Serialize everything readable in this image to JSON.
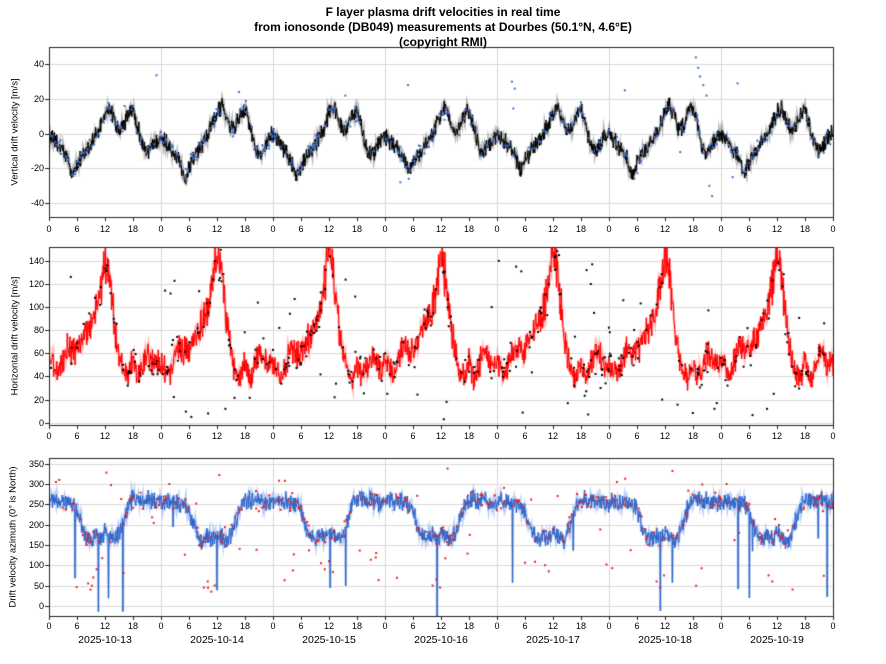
{
  "title": {
    "line1": "F layer plasma drift velocities in real time",
    "line2": "from ionosonde (DB049) measurements at Dourbes (50.1°N, 4.6°E)",
    "line3": "(copyright RMI)"
  },
  "x_axis": {
    "hours_total": 168,
    "hour_tick_step": 6,
    "hour_tick_labels": [
      "0",
      "6",
      "12",
      "18",
      "0",
      "6",
      "12",
      "18",
      "0",
      "6",
      "12",
      "18",
      "0",
      "6",
      "12",
      "18",
      "0",
      "6",
      "12",
      "18",
      "0",
      "6",
      "12",
      "18",
      "0",
      "6",
      "12",
      "18",
      "0"
    ],
    "day_labels": [
      "2025-10-13",
      "2025-10-14",
      "2025-10-15",
      "2025-10-16",
      "2025-10-17",
      "2025-10-18",
      "2025-10-19"
    ]
  },
  "colors": {
    "frame": "#222222",
    "grid": "#d9d9d9",
    "tick": "#222222"
  },
  "chart_data": {
    "type": "line",
    "x_unit": "hours since 2025-10-13 00:00",
    "grid": true,
    "panels": [
      {
        "name": "vertical_drift",
        "ylabel": "Vertical drift velocity [m/s]",
        "yticks": [
          -40,
          -20,
          0,
          20,
          40
        ],
        "ylim": [
          -48,
          50
        ],
        "line_color": "#000000",
        "band_color": "rgba(0,0,0,0.28)",
        "dot_color": "#3a6fd8",
        "noise_amplitude": 6,
        "noise_value_factor": 0,
        "spike_prob": 0,
        "spike_depth": 0,
        "scatter_per_day": 55,
        "scatter_spread": 7,
        "scatter_uniform_prob": 0.02,
        "scatter_uniform_range": [
          -35,
          40
        ],
        "hourly": [
          0,
          -4,
          -7,
          -10,
          -15,
          -24,
          -18,
          -13,
          -10,
          -6,
          -2,
          4,
          11,
          15,
          8,
          2,
          5,
          11,
          14,
          4,
          -6,
          -11,
          -8,
          -3,
          -1,
          -5,
          -8,
          -11,
          -16,
          -26,
          -19,
          -13,
          -9,
          -5,
          -1,
          5,
          12,
          16,
          9,
          3,
          5,
          10,
          15,
          5,
          -7,
          -12,
          -8,
          -4,
          0,
          -4,
          -8,
          -12,
          -17,
          -27,
          -20,
          -14,
          -10,
          -6,
          -2,
          4,
          12,
          17,
          8,
          2,
          4,
          9,
          13,
          3,
          -8,
          -13,
          -9,
          -4,
          -1,
          -4,
          -7,
          -10,
          -14,
          -23,
          -17,
          -12,
          -9,
          -5,
          -1,
          5,
          11,
          15,
          7,
          1,
          3,
          10,
          14,
          4,
          -7,
          -11,
          -7,
          -3,
          0,
          -3,
          -6,
          -9,
          -13,
          -22,
          -16,
          -11,
          -8,
          -4,
          0,
          6,
          12,
          16,
          8,
          2,
          4,
          11,
          15,
          5,
          -6,
          -10,
          -7,
          -2,
          -1,
          -4,
          -7,
          -11,
          -15,
          -25,
          -18,
          -12,
          -9,
          -5,
          -1,
          5,
          13,
          17,
          9,
          3,
          5,
          12,
          16,
          5,
          -7,
          -12,
          -8,
          -3,
          0,
          -3,
          -7,
          -10,
          -14,
          -23,
          -17,
          -12,
          -8,
          -4,
          0,
          5,
          12,
          16,
          8,
          2,
          4,
          10,
          14,
          4,
          -6,
          -10,
          -6,
          -2,
          0
        ],
        "outliers": [
          [
            16.2,
            16
          ],
          [
            40.7,
            24
          ],
          [
            63.5,
            22
          ],
          [
            75.3,
            -28
          ],
          [
            99.2,
            30
          ],
          [
            99.8,
            26
          ],
          [
            123.4,
            25
          ],
          [
            138.6,
            44
          ],
          [
            139.1,
            38
          ],
          [
            139.5,
            33
          ],
          [
            140.2,
            28
          ],
          [
            140.9,
            22
          ],
          [
            141.5,
            -30
          ],
          [
            142.1,
            -36
          ],
          [
            146.5,
            -25
          ]
        ]
      },
      {
        "name": "horizontal_drift",
        "ylabel": "Horizontal drift velocity [m/s]",
        "yticks": [
          0,
          20,
          40,
          60,
          80,
          100,
          120,
          140
        ],
        "ylim": [
          -2,
          152
        ],
        "line_color": "#ff0000",
        "band_color": "rgba(255,60,60,0.35)",
        "dot_color": "#000000",
        "noise_amplitude": 18,
        "noise_value_factor": 0.006,
        "spike_prob": 0,
        "spike_depth": 0,
        "scatter_per_day": 50,
        "scatter_spread": 24,
        "scatter_uniform_prob": 0.15,
        "scatter_uniform_range": [
          4,
          145
        ],
        "hourly": [
          55,
          48,
          45,
          55,
          65,
          60,
          62,
          70,
          78,
          85,
          95,
          115,
          142,
          125,
          85,
          60,
          45,
          40,
          55,
          38,
          45,
          60,
          55,
          50,
          52,
          46,
          44,
          58,
          68,
          62,
          60,
          72,
          80,
          88,
          100,
          120,
          148,
          130,
          90,
          62,
          42,
          38,
          52,
          35,
          48,
          62,
          58,
          52,
          50,
          45,
          42,
          54,
          64,
          58,
          61,
          68,
          76,
          84,
          98,
          118,
          150,
          128,
          88,
          58,
          44,
          36,
          50,
          40,
          46,
          58,
          54,
          48,
          54,
          47,
          43,
          56,
          66,
          60,
          63,
          71,
          79,
          86,
          96,
          116,
          145,
          126,
          86,
          61,
          43,
          39,
          54,
          37,
          47,
          61,
          56,
          51,
          53,
          46,
          44,
          57,
          67,
          61,
          62,
          70,
          78,
          87,
          99,
          119,
          149,
          129,
          89,
          60,
          42,
          37,
          51,
          36,
          49,
          63,
          57,
          50,
          51,
          45,
          43,
          55,
          65,
          59,
          61,
          69,
          77,
          85,
          97,
          117,
          146,
          127,
          87,
          59,
          44,
          38,
          53,
          39,
          45,
          59,
          55,
          49,
          52,
          47,
          44,
          56,
          66,
          60,
          62,
          70,
          78,
          86,
          98,
          118,
          150,
          128,
          88,
          60,
          43,
          38,
          52,
          37,
          46,
          60,
          56,
          50,
          52
        ],
        "outliers": [
          [
            13.2,
            112
          ],
          [
            30.5,
            5
          ],
          [
            34.1,
            8
          ],
          [
            37.8,
            12
          ],
          [
            61.2,
            22
          ],
          [
            84.6,
            3
          ],
          [
            85.2,
            18
          ],
          [
            96.4,
            140
          ],
          [
            100.1,
            135
          ],
          [
            109.3,
            145
          ],
          [
            115.2,
            132
          ],
          [
            116.1,
            120
          ],
          [
            116.8,
            95
          ],
          [
            117.4,
            60
          ],
          [
            118.2,
            30
          ],
          [
            131.4,
            20
          ],
          [
            142.6,
            12
          ],
          [
            155.3,
            25
          ]
        ]
      },
      {
        "name": "drift_azimuth",
        "ylabel": "Drift velocity azimuth (0° is North)",
        "yticks": [
          0,
          50,
          100,
          150,
          200,
          250,
          300,
          350
        ],
        "ylim": [
          -25,
          364
        ],
        "line_color": "#2e64c8",
        "band_color": "rgba(80,130,225,0.40)",
        "dot_color": "#e82020",
        "noise_amplitude": 26,
        "noise_value_factor": 0,
        "spike_prob": 0.009,
        "spike_depth": 150,
        "scatter_per_day": 45,
        "scatter_spread": 35,
        "scatter_uniform_prob": 0.18,
        "scatter_uniform_range": [
          35,
          330
        ],
        "hourly": [
          255,
          262,
          250,
          258,
          252,
          248,
          238,
          200,
          172,
          160,
          175,
          165,
          182,
          170,
          160,
          176,
          212,
          246,
          262,
          266,
          256,
          262,
          258,
          252,
          250,
          258,
          252,
          256,
          250,
          246,
          235,
          195,
          168,
          158,
          172,
          162,
          178,
          168,
          158,
          172,
          208,
          242,
          258,
          263,
          254,
          260,
          256,
          250,
          252,
          260,
          254,
          258,
          252,
          248,
          240,
          198,
          170,
          162,
          176,
          166,
          180,
          172,
          162,
          176,
          212,
          246,
          262,
          266,
          256,
          262,
          258,
          252,
          254,
          261,
          252,
          257,
          251,
          247,
          237,
          196,
          169,
          159,
          174,
          164,
          179,
          169,
          159,
          174,
          210,
          244,
          260,
          265,
          255,
          261,
          257,
          251,
          253,
          259,
          251,
          256,
          250,
          246,
          238,
          197,
          171,
          161,
          175,
          165,
          181,
          171,
          161,
          175,
          211,
          245,
          261,
          265,
          255,
          261,
          257,
          251,
          252,
          260,
          253,
          257,
          251,
          247,
          239,
          199,
          170,
          160,
          174,
          166,
          180,
          170,
          160,
          175,
          210,
          244,
          260,
          264,
          254,
          260,
          256,
          250,
          253,
          260,
          252,
          257,
          251,
          247,
          238,
          198,
          170,
          160,
          175,
          165,
          180,
          170,
          160,
          175,
          211,
          245,
          261,
          265,
          255,
          261,
          257,
          251,
          253
        ],
        "outliers": [
          [
            8.4,
            55
          ],
          [
            8.9,
            40
          ],
          [
            9.5,
            70
          ],
          [
            10.2,
            90
          ],
          [
            33.2,
            45
          ],
          [
            34.0,
            60
          ],
          [
            34.8,
            35
          ],
          [
            35.5,
            50
          ],
          [
            58.3,
            105
          ],
          [
            59.1,
            90
          ],
          [
            60.0,
            110
          ],
          [
            82.2,
            50
          ],
          [
            83.0,
            65
          ],
          [
            83.8,
            45
          ],
          [
            106.3,
            100
          ],
          [
            107.1,
            85
          ],
          [
            130.2,
            60
          ],
          [
            131.0,
            45
          ],
          [
            131.8,
            75
          ],
          [
            154.2,
            75
          ],
          [
            155.0,
            60
          ],
          [
            12.3,
            328
          ],
          [
            36.5,
            322
          ],
          [
            85.4,
            338
          ],
          [
            133.6,
            332
          ],
          [
            1.5,
            305
          ],
          [
            2.2,
            310
          ],
          [
            25.8,
            300
          ],
          [
            49.3,
            308
          ],
          [
            121.7,
            305
          ],
          [
            145.2,
            300
          ]
        ]
      }
    ]
  }
}
